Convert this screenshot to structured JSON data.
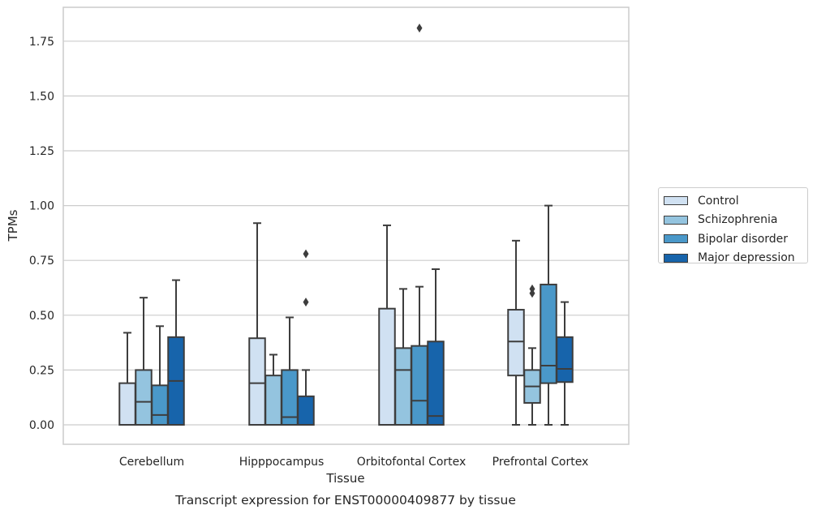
{
  "chart_data": {
    "type": "box",
    "title": "",
    "caption": "Transcript expression for ENST00000409877 by tissue",
    "xlabel": "Tissue",
    "ylabel": "TPMs",
    "ylim": [
      -0.09,
      1.9
    ],
    "yticks": [
      "0.00",
      "0.25",
      "0.50",
      "0.75",
      "1.00",
      "1.25",
      "1.50",
      "1.75"
    ],
    "grid": "horizontal",
    "legend_position": "outside-right",
    "categories": [
      "Cerebellum",
      "Hipppocampus",
      "Orbitofontal Cortex",
      "Prefrontal Cortex"
    ],
    "series": [
      {
        "name": "Control",
        "color": "#d0e1f2",
        "boxes": [
          {
            "whislo": 0.0,
            "q1": 0.0,
            "med": 0.0,
            "q3": 0.19,
            "whishi": 0.42,
            "fliers": []
          },
          {
            "whislo": 0.0,
            "q1": 0.0,
            "med": 0.19,
            "q3": 0.395,
            "whishi": 0.92,
            "fliers": []
          },
          {
            "whislo": 0.0,
            "q1": 0.0,
            "med": 0.0,
            "q3": 0.53,
            "whishi": 0.91,
            "fliers": []
          },
          {
            "whislo": 0.0,
            "q1": 0.225,
            "med": 0.38,
            "q3": 0.525,
            "whishi": 0.84,
            "fliers": []
          }
        ]
      },
      {
        "name": "Schizophrenia",
        "color": "#94c4df",
        "boxes": [
          {
            "whislo": 0.0,
            "q1": 0.0,
            "med": 0.105,
            "q3": 0.25,
            "whishi": 0.58,
            "fliers": []
          },
          {
            "whislo": 0.0,
            "q1": 0.0,
            "med": 0.0,
            "q3": 0.225,
            "whishi": 0.32,
            "fliers": []
          },
          {
            "whislo": 0.0,
            "q1": 0.0,
            "med": 0.25,
            "q3": 0.35,
            "whishi": 0.62,
            "fliers": []
          },
          {
            "whislo": 0.0,
            "q1": 0.1,
            "med": 0.175,
            "q3": 0.25,
            "whishi": 0.35,
            "fliers": [
              0.6,
              0.62
            ]
          }
        ]
      },
      {
        "name": "Bipolar disorder",
        "color": "#4a98c9",
        "boxes": [
          {
            "whislo": 0.0,
            "q1": 0.0,
            "med": 0.045,
            "q3": 0.18,
            "whishi": 0.45,
            "fliers": []
          },
          {
            "whislo": 0.0,
            "q1": 0.0,
            "med": 0.035,
            "q3": 0.25,
            "whishi": 0.49,
            "fliers": []
          },
          {
            "whislo": 0.0,
            "q1": 0.0,
            "med": 0.11,
            "q3": 0.36,
            "whishi": 0.63,
            "fliers": [
              1.81
            ]
          },
          {
            "whislo": 0.0,
            "q1": 0.19,
            "med": 0.27,
            "q3": 0.64,
            "whishi": 1.0,
            "fliers": []
          }
        ]
      },
      {
        "name": "Major depression",
        "color": "#1764ab",
        "boxes": [
          {
            "whislo": 0.0,
            "q1": 0.0,
            "med": 0.2,
            "q3": 0.4,
            "whishi": 0.66,
            "fliers": []
          },
          {
            "whislo": 0.0,
            "q1": 0.0,
            "med": 0.0,
            "q3": 0.13,
            "whishi": 0.25,
            "fliers": [
              0.56,
              0.78
            ]
          },
          {
            "whislo": 0.0,
            "q1": 0.0,
            "med": 0.04,
            "q3": 0.38,
            "whishi": 0.71,
            "fliers": []
          },
          {
            "whislo": 0.0,
            "q1": 0.195,
            "med": 0.255,
            "q3": 0.4,
            "whishi": 0.56,
            "fliers": []
          }
        ]
      }
    ]
  }
}
